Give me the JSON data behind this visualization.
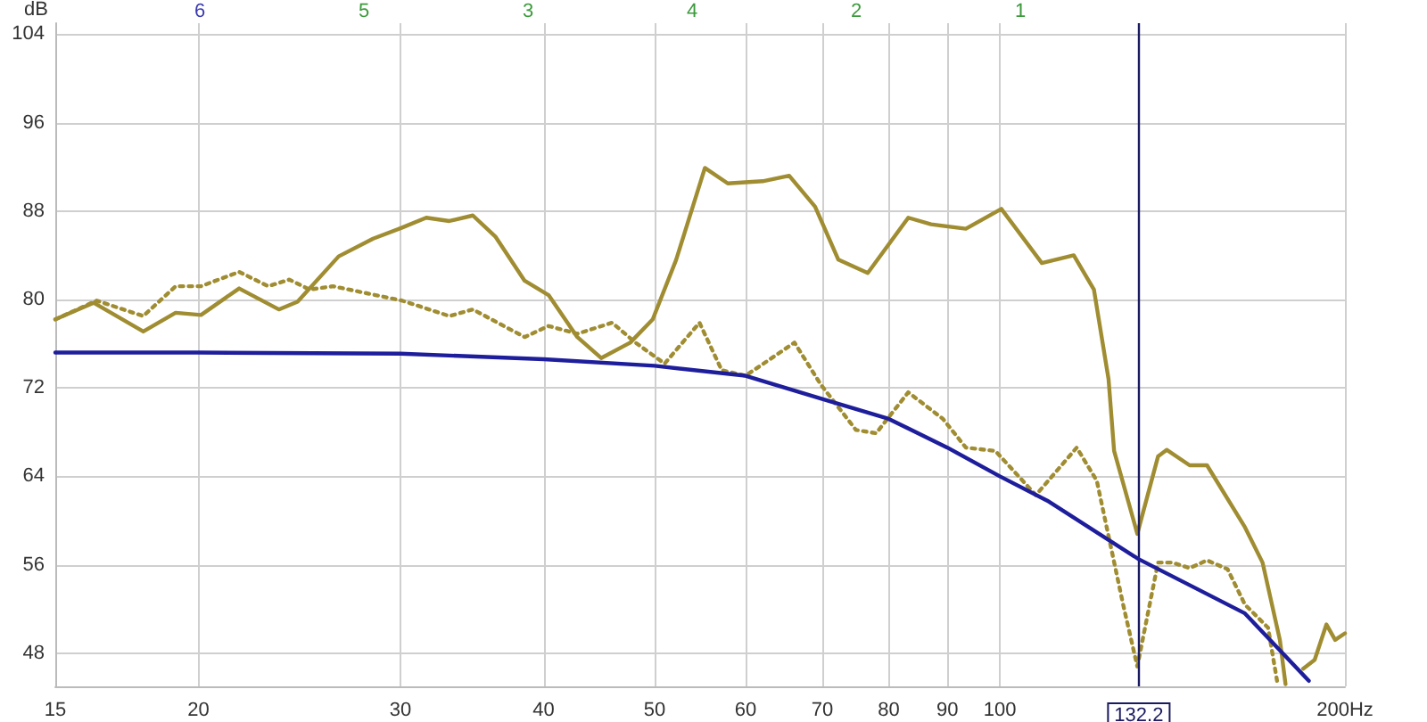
{
  "chart_data": {
    "type": "line",
    "ylabel": "dB",
    "log": "x",
    "grid": true,
    "marker": "none",
    "xlim": [
      15,
      200
    ],
    "xticks": [
      15,
      20,
      30,
      40,
      50,
      60,
      70,
      80,
      90,
      100,
      {
        "value": 200,
        "label": "200Hz"
      }
    ],
    "ylim": [
      45,
      105
    ],
    "yticks": [
      48,
      56,
      64,
      72,
      80,
      88,
      96,
      104
    ],
    "ref_lines": [
      {
        "axis": "x",
        "value": 132.2,
        "label": "132.2",
        "color": "#1a1a60"
      }
    ],
    "annotations": [
      "6",
      "5",
      "3",
      "4",
      "2",
      "1"
    ],
    "series": [
      {
        "color": "#a08d32",
        "line_style": "solid",
        "x": [
          15,
          16.2,
          17.9,
          19.1,
          20.1,
          21.7,
          23.5,
          24.4,
          26.5,
          28.4,
          30.1,
          31.6,
          33.1,
          34.7,
          36.3,
          38.5,
          40.4,
          42.8,
          44.9,
          47.6,
          49.8,
          52.2,
          55.3,
          57.9,
          62.1,
          65.5,
          69,
          72.3,
          76.7,
          83.2,
          87.1,
          93.4,
          100.3,
          108.8,
          116,
          120.8,
          124.4,
          125.8,
          131.8,
          137.4,
          139.8,
          146.4,
          151.6,
          163.6,
          169.5,
          175.5,
          177.5,
          180,
          183.9,
          188.2,
          192.7,
          196.1,
          200
        ],
        "values": [
          78.2,
          79.7,
          77.1,
          78.8,
          78.6,
          81,
          79.1,
          79.8,
          83.9,
          85.5,
          86.5,
          87.4,
          87.1,
          87.6,
          85.7,
          81.7,
          80.4,
          76.6,
          74.7,
          76.1,
          78.2,
          83.6,
          91.9,
          90.5,
          90.7,
          91.2,
          88.4,
          83.6,
          82.4,
          87.4,
          86.8,
          86.4,
          88.2,
          83.3,
          84,
          80.9,
          72.8,
          66.3,
          58.8,
          65.8,
          66.4,
          65,
          65,
          59.4,
          56.2,
          49.2,
          45.2,
          null,
          46.6,
          47.4,
          50.6,
          49.2,
          49.8
        ]
      },
      {
        "color": "#a08d32",
        "line_style": "dotted",
        "x": [
          15,
          16.3,
          17.9,
          19.1,
          20.1,
          21.7,
          23,
          24,
          25,
          26.2,
          30.1,
          33.1,
          34.7,
          38.5,
          40.4,
          42.8,
          45.9,
          48.1,
          51,
          54.7,
          57.2,
          60,
          66.2,
          69.8,
          74.9,
          78,
          83.2,
          89.2,
          93.4,
          99.1,
          107.5,
          116.7,
          121.5,
          128.1,
          131.8,
          137.4,
          141.4,
          146.4,
          151.6,
          158,
          163.6,
          171.4,
          174.5
        ],
        "values": [
          78.2,
          79.9,
          78.5,
          81.2,
          81.2,
          82.5,
          81.2,
          81.8,
          80.9,
          81.2,
          79.9,
          78.5,
          79.1,
          76.6,
          77.6,
          76.9,
          77.9,
          76.1,
          74.2,
          77.9,
          73.6,
          73.1,
          76.1,
          72.3,
          68.2,
          67.9,
          71.6,
          69.2,
          66.6,
          66.3,
          62.3,
          66.6,
          63.6,
          52.4,
          46.8,
          56.2,
          56.2,
          55.7,
          56.4,
          55.6,
          52.4,
          50.3,
          45.5
        ]
      },
      {
        "color": "#1e1e9c",
        "line_style": "solid",
        "x": [
          15,
          20,
          30,
          40,
          50,
          60,
          70,
          80,
          90,
          100,
          110,
          132.2,
          150,
          163.6,
          186
        ],
        "values": [
          75.2,
          75.2,
          75.1,
          74.6,
          74,
          73.1,
          71,
          69.2,
          66.6,
          64,
          61.8,
          56.5,
          53.6,
          51.6,
          45.5
        ]
      }
    ]
  }
}
